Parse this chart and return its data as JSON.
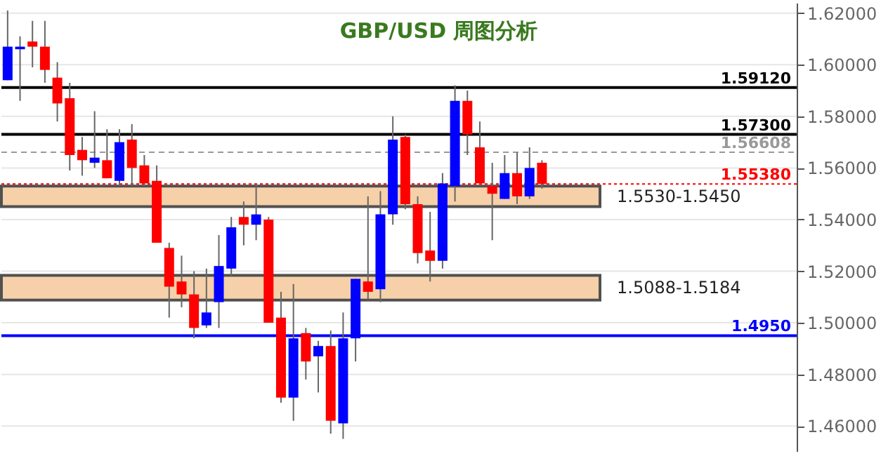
{
  "chart_data": {
    "type": "candlestick",
    "title": "GBP/USD 周图分析",
    "categories": [
      null,
      null,
      null,
      null,
      null,
      null,
      null,
      null,
      null,
      null,
      null,
      null,
      null,
      null,
      null,
      null,
      null,
      null,
      null,
      null,
      null,
      null,
      null,
      null,
      null,
      null,
      null,
      null,
      null,
      null,
      null,
      null,
      null,
      null,
      null,
      null,
      null,
      null,
      null,
      null,
      null,
      null,
      null,
      null,
      null,
      null,
      null,
      null,
      null,
      null,
      null,
      null,
      null,
      null,
      null,
      null,
      null,
      null,
      null,
      null,
      null,
      null,
      null,
      null
    ],
    "ohlc": [
      [
        1.594,
        1.621,
        1.594,
        1.607
      ],
      [
        1.606,
        1.611,
        1.586,
        1.607
      ],
      [
        1.609,
        1.617,
        1.599,
        1.607
      ],
      [
        1.607,
        1.617,
        1.593,
        1.598
      ],
      [
        1.595,
        1.601,
        1.578,
        1.585
      ],
      [
        1.587,
        1.593,
        1.559,
        1.565
      ],
      [
        1.567,
        1.572,
        1.557,
        1.563
      ],
      [
        1.562,
        1.582,
        1.56,
        1.564
      ],
      [
        1.563,
        1.575,
        1.556,
        1.556
      ],
      [
        1.555,
        1.575,
        1.553,
        1.57
      ],
      [
        1.571,
        1.577,
        1.553,
        1.56
      ],
      [
        1.561,
        1.565,
        1.553,
        1.554
      ],
      [
        1.555,
        1.561,
        1.531,
        1.531
      ],
      [
        1.529,
        1.531,
        1.502,
        1.514
      ],
      [
        1.516,
        1.526,
        1.506,
        1.511
      ],
      [
        1.511,
        1.52,
        1.494,
        1.498
      ],
      [
        1.499,
        1.521,
        1.498,
        1.504
      ],
      [
        1.508,
        1.534,
        1.498,
        1.522
      ],
      [
        1.521,
        1.541,
        1.518,
        1.537
      ],
      [
        1.541,
        1.547,
        1.53,
        1.538
      ],
      [
        1.538,
        1.554,
        1.532,
        1.542
      ],
      [
        1.54,
        1.541,
        1.5,
        1.5
      ],
      [
        1.502,
        1.512,
        1.469,
        1.471
      ],
      [
        1.471,
        1.515,
        1.462,
        1.494
      ],
      [
        1.496,
        1.498,
        1.478,
        1.485
      ],
      [
        1.487,
        1.493,
        1.473,
        1.491
      ],
      [
        1.491,
        1.497,
        1.457,
        1.462
      ],
      [
        1.461,
        1.504,
        1.455,
        1.494
      ],
      [
        1.494,
        1.517,
        1.485,
        1.517
      ],
      [
        1.516,
        1.549,
        1.509,
        1.512
      ],
      [
        1.513,
        1.551,
        1.508,
        1.542
      ],
      [
        1.542,
        1.58,
        1.538,
        1.571
      ],
      [
        1.572,
        1.573,
        1.544,
        1.546
      ],
      [
        1.546,
        1.549,
        1.523,
        1.527
      ],
      [
        1.528,
        1.543,
        1.516,
        1.524
      ],
      [
        1.524,
        1.558,
        1.521,
        1.554
      ],
      [
        1.553,
        1.592,
        1.547,
        1.586
      ],
      [
        1.586,
        1.59,
        1.565,
        1.573
      ],
      [
        1.568,
        1.578,
        1.554,
        1.554
      ],
      [
        1.553,
        1.562,
        1.532,
        1.55
      ],
      [
        1.548,
        1.565,
        1.548,
        1.558
      ],
      [
        1.558,
        1.566,
        1.546,
        1.549
      ],
      [
        1.549,
        1.568,
        1.548,
        1.56
      ],
      [
        1.562,
        1.563,
        1.552,
        1.5538
      ],
      null,
      null,
      null,
      null,
      null,
      null,
      null,
      null,
      null,
      null,
      null,
      null,
      null,
      null,
      null,
      null,
      null,
      null,
      null,
      null
    ],
    "colors": [
      "#0000ff",
      "#0000ff",
      "#ff0000",
      "#ff0000",
      "#ff0000",
      "#ff0000",
      "#ff0000",
      "#0000ff",
      "#ff0000",
      "#0000ff",
      "#ff0000",
      "#ff0000",
      "#ff0000",
      "#ff0000",
      "#ff0000",
      "#ff0000",
      "#0000ff",
      "#0000ff",
      "#0000ff",
      "#ff0000",
      "#0000ff",
      "#ff0000",
      "#ff0000",
      "#0000ff",
      "#ff0000",
      "#0000ff",
      "#ff0000",
      "#0000ff",
      "#0000ff",
      "#ff0000",
      "#0000ff",
      "#0000ff",
      "#ff0000",
      "#ff0000",
      "#ff0000",
      "#0000ff",
      "#0000ff",
      "#ff0000",
      "#ff0000",
      "#ff0000",
      "#0000ff",
      "#ff0000",
      "#0000ff",
      "#ff0000",
      null,
      null,
      null,
      null,
      null,
      null,
      null,
      null,
      null,
      null,
      null,
      null,
      null,
      null,
      null,
      null,
      null,
      null,
      null,
      null
    ],
    "ylim": [
      1.45,
      1.624
    ],
    "yticks": [
      {
        "value": 1.46,
        "label": "1.46000"
      },
      {
        "value": 1.48,
        "label": "1.48000"
      },
      {
        "value": 1.5,
        "label": "1.50000"
      },
      {
        "value": 1.52,
        "label": "1.52000"
      },
      {
        "value": 1.54,
        "label": "1.54000"
      },
      {
        "value": 1.56,
        "label": "1.56000"
      },
      {
        "value": 1.58,
        "label": "1.58000"
      },
      {
        "value": 1.6,
        "label": "1.60000"
      },
      {
        "value": 1.62,
        "label": "1.62000"
      }
    ],
    "grid": "y",
    "tick_labels": "y",
    "ref_lines": [
      {
        "axis": "y",
        "value": 1.5912,
        "label": "1.59120",
        "color": "#000000",
        "line_style": "solid"
      },
      {
        "axis": "y",
        "value": 1.573,
        "label": "1.57300",
        "color": "#000000",
        "line_style": "solid"
      },
      {
        "axis": "y",
        "value": 1.56608,
        "label": "1.56608",
        "color": "#999999",
        "line_style": "dashed"
      },
      {
        "axis": "y",
        "value": 1.5538,
        "label": "1.55380",
        "color": "#ff0000",
        "line_style": "dotted"
      },
      {
        "axis": "y",
        "value": 1.495,
        "label": "1.4950",
        "color": "#0000ff",
        "line_style": "solid"
      }
    ],
    "bands": [
      {
        "axis": "y",
        "from": 1.545,
        "to": 1.553,
        "label": "1.5530-1.5450",
        "color": "#f5c89a"
      },
      {
        "axis": "y",
        "from": 1.5088,
        "to": 1.5184,
        "label": "1.5088-1.5184",
        "color": "#f5c89a"
      }
    ]
  }
}
